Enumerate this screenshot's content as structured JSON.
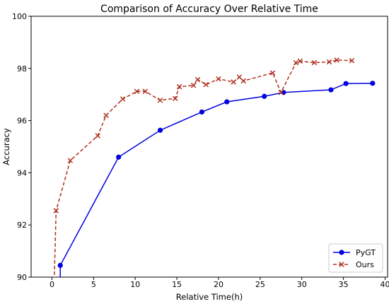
{
  "chart_data": {
    "type": "line",
    "title": "Comparison of Accuracy Over Relative Time",
    "xlabel": "Relative Time(h)",
    "ylabel": "Accuracy",
    "xlim": [
      -2.5,
      40.3
    ],
    "ylim": [
      90,
      100
    ],
    "xticks": [
      0,
      5,
      10,
      15,
      20,
      25,
      30,
      35,
      40
    ],
    "yticks": [
      90,
      92,
      94,
      96,
      98,
      100
    ],
    "grid": false,
    "legend_position": "bottom-right",
    "series": [
      {
        "name": "PyGT",
        "color": "#0000e0",
        "marker": "circle",
        "line_style": "solid",
        "points": [
          [
            1.0,
            89.0
          ],
          [
            1.0,
            90.45
          ],
          [
            8.0,
            94.6
          ],
          [
            13.0,
            95.63
          ],
          [
            18.0,
            96.33
          ],
          [
            21.0,
            96.72
          ],
          [
            25.5,
            96.93
          ],
          [
            27.8,
            97.08
          ],
          [
            33.5,
            97.18
          ],
          [
            35.3,
            97.42
          ],
          [
            38.5,
            97.43
          ]
        ]
      },
      {
        "name": "Ours",
        "color": "#b03020",
        "marker": "x",
        "line_style": "dashed",
        "points": [
          [
            0.2,
            89.0
          ],
          [
            0.5,
            92.55
          ],
          [
            2.2,
            94.47
          ],
          [
            5.5,
            95.42
          ],
          [
            6.5,
            96.2
          ],
          [
            8.5,
            96.83
          ],
          [
            10.2,
            97.12
          ],
          [
            11.2,
            97.12
          ],
          [
            13.0,
            96.78
          ],
          [
            14.8,
            96.85
          ],
          [
            15.3,
            97.3
          ],
          [
            17.0,
            97.35
          ],
          [
            17.5,
            97.57
          ],
          [
            18.5,
            97.38
          ],
          [
            20.0,
            97.6
          ],
          [
            21.8,
            97.48
          ],
          [
            22.5,
            97.67
          ],
          [
            23.0,
            97.52
          ],
          [
            26.5,
            97.83
          ],
          [
            27.5,
            97.08
          ],
          [
            29.3,
            98.22
          ],
          [
            29.8,
            98.28
          ],
          [
            31.5,
            98.22
          ],
          [
            33.3,
            98.25
          ],
          [
            34.2,
            98.32
          ],
          [
            36.0,
            98.3
          ]
        ]
      }
    ]
  }
}
